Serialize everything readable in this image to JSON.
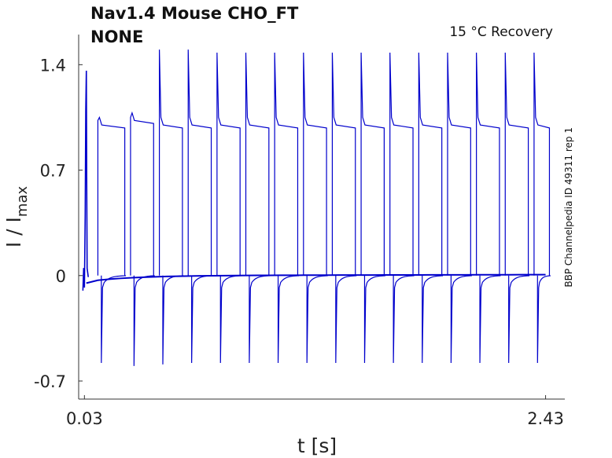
{
  "header": {
    "title_line1": "Nav1.4  Mouse  CHO_FT",
    "title_line2": "NONE",
    "condition": "15 °C  Recovery",
    "side_label": "BBP Channelpedia ID 49311 rep 1"
  },
  "chart_data": {
    "type": "line",
    "xlabel": "t [s]",
    "ylabel": "I / I",
    "ylabel_sub": "max",
    "xlim": [
      0.0,
      2.53
    ],
    "ylim": [
      -0.82,
      1.6
    ],
    "x_ticks": [
      0.03,
      2.43
    ],
    "x_tick_labels": [
      "0.03",
      "2.43"
    ],
    "y_ticks": [
      -0.7,
      0,
      0.7,
      1.4
    ],
    "y_tick_labels": [
      "-0.7",
      "0",
      "0.7",
      "1.4"
    ],
    "grid": false,
    "line_color": "#0000cc",
    "protocol": {
      "conditioning_pulse_time": 0.03,
      "test_pulse_times": [
        0.1,
        0.27,
        0.42,
        0.57,
        0.72,
        0.87,
        1.02,
        1.17,
        1.32,
        1.47,
        1.62,
        1.77,
        1.92,
        2.07,
        2.22,
        2.37
      ],
      "test_peak_values": [
        1.03,
        1.05,
        1.5,
        1.5,
        1.48,
        1.48,
        1.48,
        1.48,
        1.48,
        1.48,
        1.48,
        1.48,
        1.48,
        1.48,
        1.48,
        1.48
      ],
      "test_plateau_values": [
        1.0,
        1.03,
        1.0,
        1.0,
        1.0,
        1.0,
        1.0,
        1.0,
        1.0,
        1.0,
        1.0,
        1.0,
        1.0,
        1.0,
        1.0,
        1.0
      ],
      "negative_peak_values": [
        -0.58,
        -0.6,
        -0.59,
        -0.58,
        -0.58,
        -0.58,
        -0.58,
        -0.58,
        -0.58,
        -0.58,
        -0.58,
        -0.58,
        -0.58,
        -0.58,
        -0.58,
        -0.58
      ],
      "initial_peak": 1.36,
      "baseline": 0.0,
      "end_time": 2.43
    }
  }
}
